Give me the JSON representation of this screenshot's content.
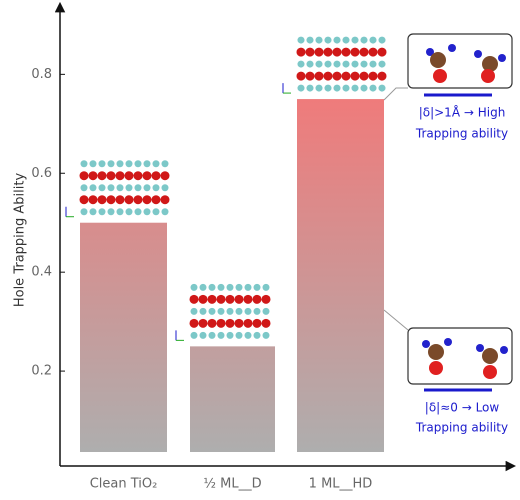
{
  "chart_data": {
    "type": "bar",
    "y_label": "Hole Trapping Ability",
    "categories": [
      "Clean TiO₂",
      "½ ML__D",
      "1 ML__HD"
    ],
    "values": [
      0.5,
      0.25,
      0.75
    ],
    "color_top": "#ef7b7b",
    "color_bottom": "#aeaeae",
    "ylim": [
      0,
      0.92
    ],
    "yticks": [
      0.2,
      0.4,
      0.6,
      0.8
    ],
    "annotations": [
      "|δ|>1Å → High",
      "Trapping ability",
      "|δ|≈0 → Low",
      "Trapping ability"
    ]
  }
}
